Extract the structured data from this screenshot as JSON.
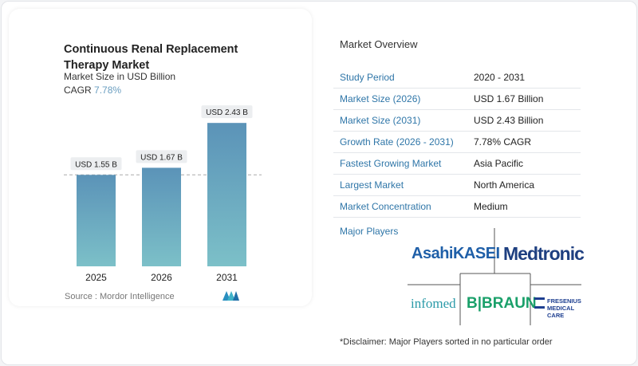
{
  "title": "Continuous Renal Replacement Therapy Market",
  "subtitle": "Market Size in USD Billion",
  "cagr_label": "CAGR",
  "cagr_value": "7.78%",
  "source": "Source :  Mordor Intelligence",
  "chart_data": {
    "type": "bar",
    "categories": [
      "2025",
      "2026",
      "2031"
    ],
    "values": [
      1.55,
      1.67,
      2.43
    ],
    "data_labels": [
      "USD 1.55 B",
      "USD 1.67 B",
      "USD 2.43 B"
    ],
    "ylabel": "Market Size in USD Billion",
    "ylim": [
      0,
      2.5
    ],
    "colors": {
      "bar_top": "#5b93b8",
      "bar_bottom": "#7cc0c8",
      "accent": "#6a9ec0"
    }
  },
  "overview": {
    "heading": "Market Overview",
    "rows": [
      {
        "label": "Study Period",
        "value": "2020 - 2031"
      },
      {
        "label": "Market Size (2026)",
        "value": "USD 1.67 Billion"
      },
      {
        "label": "Market Size (2031)",
        "value": "USD 2.43 Billion"
      },
      {
        "label": "Growth Rate (2026 - 2031)",
        "value": "7.78% CAGR"
      },
      {
        "label": "Fastest Growing Market",
        "value": "Asia Pacific"
      },
      {
        "label": "Largest Market",
        "value": "North America"
      },
      {
        "label": "Market Concentration",
        "value": "Medium"
      }
    ],
    "players_heading": "Major Players",
    "players": [
      "AsahiKASEI",
      "Medtronic",
      "infomed",
      "B|BRAUN",
      "FRESENIUS MEDICAL CARE"
    ],
    "disclaimer": "*Disclaimer: Major Players sorted in no particular order"
  }
}
